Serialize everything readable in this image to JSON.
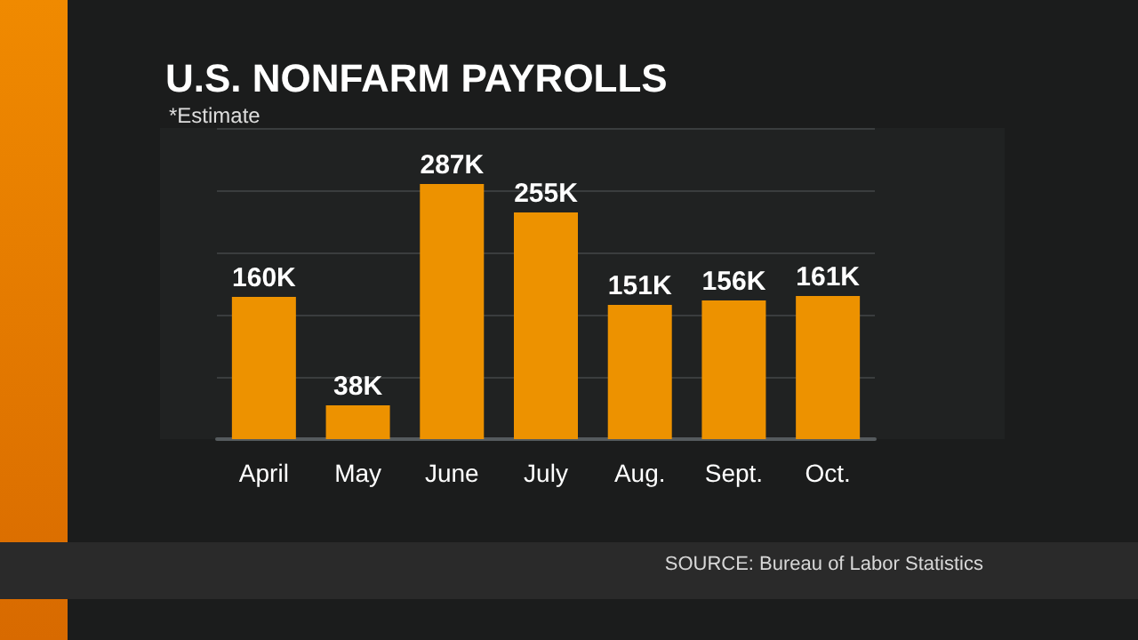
{
  "chart_data": {
    "type": "bar",
    "title": "U.S. NONFARM PAYROLLS",
    "subtitle": "*Estimate",
    "categories": [
      "April",
      "May",
      "June",
      "July",
      "Aug.",
      "Sept.",
      "Oct."
    ],
    "values": [
      160,
      38,
      287,
      255,
      151,
      156,
      161
    ],
    "value_labels": [
      "160K",
      "38K",
      "287K",
      "255K",
      "151K",
      "156K",
      "161K"
    ],
    "color": "#ed9200",
    "ylim": [
      0,
      350
    ],
    "yticks": [
      {
        "value": 0,
        "label": null
      },
      {
        "value": 70,
        "label": null
      },
      {
        "value": 140,
        "label": null
      },
      {
        "value": 210,
        "label": null
      },
      {
        "value": 280,
        "label": null
      },
      {
        "value": 350,
        "label": null
      }
    ],
    "tick_labels": "x",
    "grid": "y",
    "annotations": [
      "SOURCE: Bureau of Labor Statistics"
    ]
  }
}
